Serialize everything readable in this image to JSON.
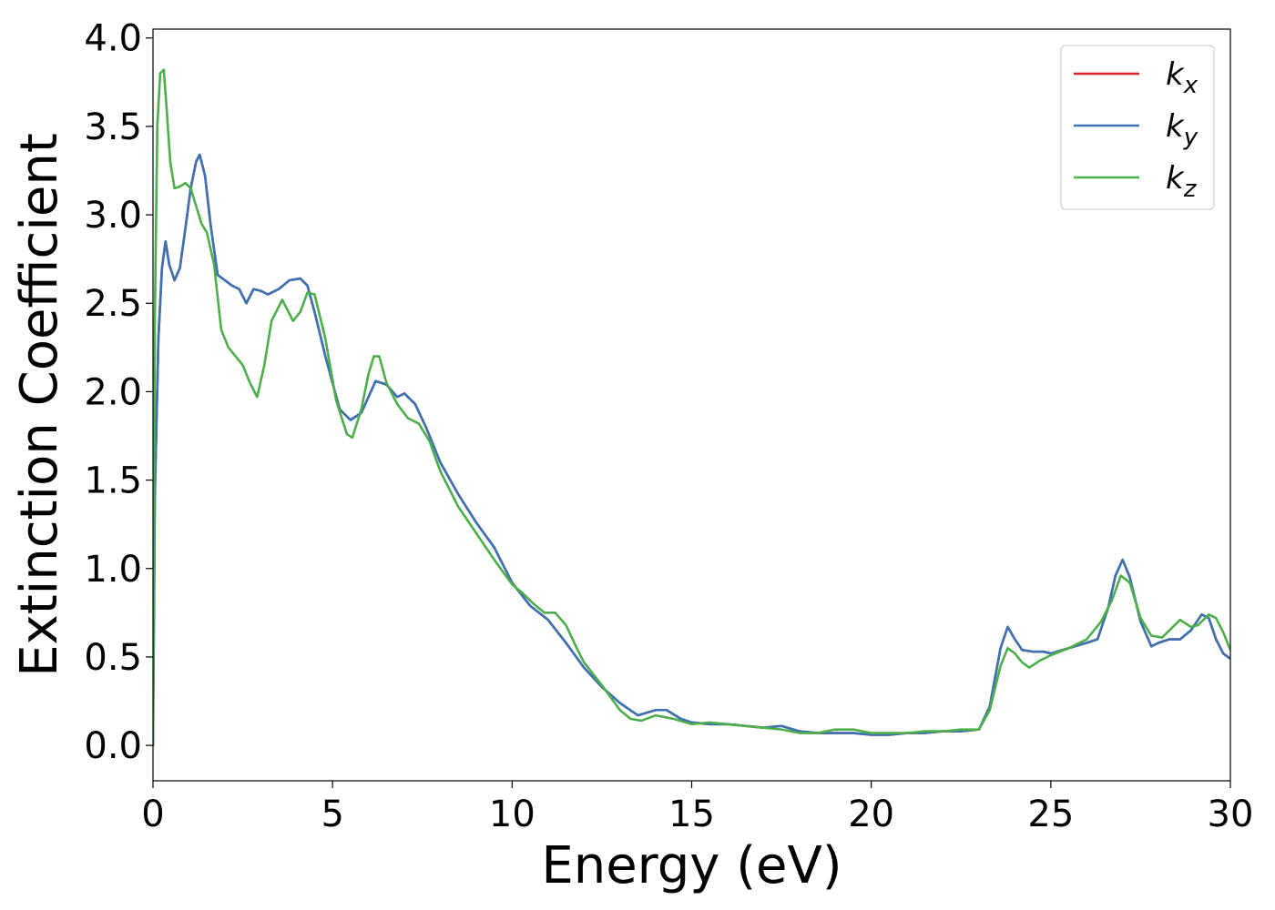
{
  "chart_data": {
    "type": "line",
    "xlabel": "Energy (eV)",
    "ylabel": "Extinction Coefficient",
    "xlim": [
      0,
      30
    ],
    "ylim": [
      -0.2,
      4.05
    ],
    "xticks": [
      0,
      5,
      10,
      15,
      20,
      25,
      30
    ],
    "xtick_labels": [
      "0",
      "5",
      "10",
      "15",
      "20",
      "25",
      "30"
    ],
    "yticks": [
      0.0,
      0.5,
      1.0,
      1.5,
      2.0,
      2.5,
      3.0,
      3.5,
      4.0
    ],
    "ytick_labels": [
      "0.0",
      "0.5",
      "1.0",
      "1.5",
      "2.0",
      "2.5",
      "3.0",
      "3.5",
      "4.0"
    ],
    "grid": false,
    "legend_position": "top-right",
    "series": [
      {
        "name": "kx",
        "legend_main": "k",
        "legend_sub": "x",
        "color": "#d62728",
        "x": [
          0,
          0.05,
          0.15,
          0.25,
          0.35,
          0.45,
          0.6,
          0.75,
          0.9,
          1.05,
          1.2,
          1.3,
          1.45,
          1.6,
          1.8,
          2.0,
          2.2,
          2.4,
          2.6,
          2.8,
          3.0,
          3.2,
          3.5,
          3.8,
          4.1,
          4.3,
          4.5,
          4.8,
          5.2,
          5.5,
          5.8,
          6.0,
          6.2,
          6.5,
          6.8,
          7.0,
          7.3,
          7.6,
          8.0,
          8.5,
          9.0,
          9.5,
          10.0,
          10.5,
          11.0,
          11.5,
          12.0,
          12.5,
          13.0,
          13.5,
          14.0,
          14.3,
          14.7,
          15.0,
          15.5,
          16.0,
          16.5,
          17.0,
          17.5,
          18.0,
          18.5,
          19.0,
          19.5,
          20.0,
          20.5,
          21.0,
          21.5,
          22.0,
          22.5,
          23.0,
          23.3,
          23.6,
          23.8,
          24.0,
          24.2,
          24.5,
          24.8,
          25.0,
          25.5,
          26.0,
          26.3,
          26.6,
          26.8,
          27.0,
          27.2,
          27.5,
          27.8,
          28.0,
          28.3,
          28.6,
          28.9,
          29.2,
          29.4,
          29.6,
          29.8,
          30.0
        ],
        "y": [
          0.0,
          1.4,
          2.3,
          2.7,
          2.85,
          2.72,
          2.63,
          2.7,
          2.92,
          3.15,
          3.3,
          3.34,
          3.22,
          2.95,
          2.66,
          2.63,
          2.6,
          2.58,
          2.5,
          2.58,
          2.57,
          2.55,
          2.58,
          2.63,
          2.64,
          2.6,
          2.45,
          2.2,
          1.9,
          1.84,
          1.88,
          1.97,
          2.06,
          2.04,
          1.97,
          1.99,
          1.93,
          1.8,
          1.6,
          1.42,
          1.26,
          1.12,
          0.92,
          0.79,
          0.71,
          0.58,
          0.44,
          0.33,
          0.24,
          0.17,
          0.2,
          0.2,
          0.15,
          0.13,
          0.12,
          0.12,
          0.11,
          0.1,
          0.11,
          0.08,
          0.07,
          0.07,
          0.07,
          0.06,
          0.06,
          0.07,
          0.07,
          0.08,
          0.08,
          0.09,
          0.22,
          0.55,
          0.67,
          0.6,
          0.54,
          0.53,
          0.53,
          0.52,
          0.55,
          0.58,
          0.6,
          0.78,
          0.96,
          1.05,
          0.95,
          0.7,
          0.56,
          0.58,
          0.6,
          0.6,
          0.65,
          0.74,
          0.72,
          0.6,
          0.52,
          0.49
        ]
      },
      {
        "name": "ky",
        "legend_main": "k",
        "legend_sub": "y",
        "color": "#3a73b3",
        "x": [
          0,
          0.05,
          0.15,
          0.25,
          0.35,
          0.45,
          0.6,
          0.75,
          0.9,
          1.05,
          1.2,
          1.3,
          1.45,
          1.6,
          1.8,
          2.0,
          2.2,
          2.4,
          2.6,
          2.8,
          3.0,
          3.2,
          3.5,
          3.8,
          4.1,
          4.3,
          4.5,
          4.8,
          5.2,
          5.5,
          5.8,
          6.0,
          6.2,
          6.5,
          6.8,
          7.0,
          7.3,
          7.6,
          8.0,
          8.5,
          9.0,
          9.5,
          10.0,
          10.5,
          11.0,
          11.5,
          12.0,
          12.5,
          13.0,
          13.5,
          14.0,
          14.3,
          14.7,
          15.0,
          15.5,
          16.0,
          16.5,
          17.0,
          17.5,
          18.0,
          18.5,
          19.0,
          19.5,
          20.0,
          20.5,
          21.0,
          21.5,
          22.0,
          22.5,
          23.0,
          23.3,
          23.6,
          23.8,
          24.0,
          24.2,
          24.5,
          24.8,
          25.0,
          25.5,
          26.0,
          26.3,
          26.6,
          26.8,
          27.0,
          27.2,
          27.5,
          27.8,
          28.0,
          28.3,
          28.6,
          28.9,
          29.2,
          29.4,
          29.6,
          29.8,
          30.0
        ],
        "y": [
          0.0,
          1.4,
          2.3,
          2.7,
          2.85,
          2.72,
          2.63,
          2.7,
          2.92,
          3.15,
          3.3,
          3.34,
          3.22,
          2.95,
          2.66,
          2.63,
          2.6,
          2.58,
          2.5,
          2.58,
          2.57,
          2.55,
          2.58,
          2.63,
          2.64,
          2.6,
          2.45,
          2.2,
          1.9,
          1.84,
          1.88,
          1.97,
          2.06,
          2.04,
          1.97,
          1.99,
          1.93,
          1.8,
          1.6,
          1.42,
          1.26,
          1.12,
          0.92,
          0.79,
          0.71,
          0.58,
          0.44,
          0.33,
          0.24,
          0.17,
          0.2,
          0.2,
          0.15,
          0.13,
          0.12,
          0.12,
          0.11,
          0.1,
          0.11,
          0.08,
          0.07,
          0.07,
          0.07,
          0.06,
          0.06,
          0.07,
          0.07,
          0.08,
          0.08,
          0.09,
          0.22,
          0.55,
          0.67,
          0.6,
          0.54,
          0.53,
          0.53,
          0.52,
          0.55,
          0.58,
          0.6,
          0.78,
          0.96,
          1.05,
          0.95,
          0.7,
          0.56,
          0.58,
          0.6,
          0.6,
          0.65,
          0.74,
          0.72,
          0.6,
          0.52,
          0.49
        ]
      },
      {
        "name": "kz",
        "legend_main": "k",
        "legend_sub": "z",
        "color": "#4daf4a",
        "x": [
          0,
          0.05,
          0.12,
          0.2,
          0.3,
          0.38,
          0.48,
          0.6,
          0.75,
          0.9,
          1.05,
          1.2,
          1.35,
          1.5,
          1.7,
          1.9,
          2.1,
          2.3,
          2.5,
          2.7,
          2.9,
          3.1,
          3.3,
          3.6,
          3.9,
          4.1,
          4.3,
          4.5,
          4.8,
          5.1,
          5.4,
          5.55,
          5.8,
          6.0,
          6.15,
          6.3,
          6.5,
          6.8,
          7.1,
          7.4,
          7.7,
          8.0,
          8.5,
          9.0,
          9.5,
          10.0,
          10.3,
          10.6,
          10.9,
          11.2,
          11.5,
          11.8,
          12.0,
          12.5,
          13.0,
          13.3,
          13.6,
          14.0,
          14.5,
          15.0,
          15.5,
          16.0,
          16.5,
          17.0,
          17.5,
          18.0,
          18.5,
          19.0,
          19.5,
          20.0,
          20.5,
          21.0,
          21.5,
          22.0,
          22.5,
          23.0,
          23.3,
          23.6,
          23.8,
          24.0,
          24.2,
          24.4,
          24.7,
          25.0,
          25.5,
          26.0,
          26.4,
          26.7,
          26.95,
          27.2,
          27.5,
          27.8,
          28.1,
          28.4,
          28.6,
          28.9,
          29.1,
          29.4,
          29.6,
          29.8,
          30.0
        ],
        "y": [
          0.0,
          2.4,
          3.5,
          3.8,
          3.82,
          3.6,
          3.3,
          3.15,
          3.16,
          3.18,
          3.15,
          3.05,
          2.95,
          2.9,
          2.72,
          2.35,
          2.25,
          2.2,
          2.15,
          2.05,
          1.97,
          2.15,
          2.4,
          2.52,
          2.4,
          2.45,
          2.56,
          2.55,
          2.3,
          1.95,
          1.76,
          1.74,
          1.9,
          2.1,
          2.2,
          2.2,
          2.05,
          1.93,
          1.85,
          1.82,
          1.72,
          1.55,
          1.35,
          1.2,
          1.05,
          0.91,
          0.86,
          0.8,
          0.75,
          0.75,
          0.68,
          0.55,
          0.47,
          0.34,
          0.2,
          0.15,
          0.14,
          0.17,
          0.15,
          0.12,
          0.13,
          0.12,
          0.11,
          0.1,
          0.09,
          0.07,
          0.07,
          0.09,
          0.09,
          0.07,
          0.07,
          0.07,
          0.08,
          0.08,
          0.09,
          0.09,
          0.2,
          0.45,
          0.55,
          0.52,
          0.47,
          0.44,
          0.48,
          0.51,
          0.55,
          0.6,
          0.7,
          0.82,
          0.96,
          0.92,
          0.72,
          0.62,
          0.61,
          0.67,
          0.71,
          0.67,
          0.68,
          0.74,
          0.72,
          0.64,
          0.54
        ]
      }
    ]
  }
}
